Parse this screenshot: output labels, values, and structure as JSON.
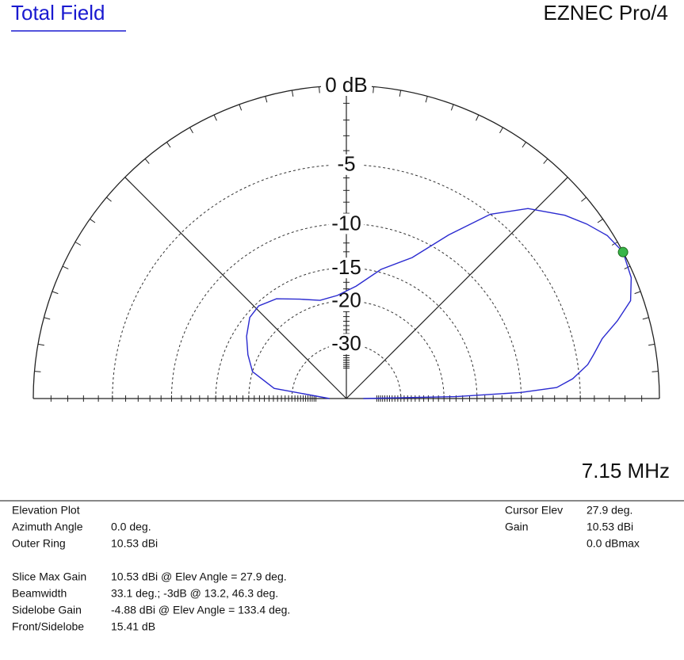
{
  "header": {
    "title": "Total Field",
    "program": "EZNEC Pro/4",
    "frequency": "7.15 MHz"
  },
  "chart_data": {
    "type": "polar",
    "scale": "arrl-log",
    "rticks": [
      {
        "value": 0,
        "label": "0 dB"
      },
      -5,
      -10,
      -15,
      -20,
      -30
    ],
    "series": [
      {
        "color": "#2a2ad0",
        "x": [
          0,
          1,
          2,
          3,
          5,
          8,
          10,
          13.2,
          16,
          19,
          23,
          27.9,
          32,
          36,
          40,
          46.3,
          52,
          58,
          65,
          75,
          85,
          95,
          105,
          115,
          125,
          133.4,
          140,
          148,
          156,
          164,
          172,
          180
        ],
        "values": [
          -50,
          -18,
          -10,
          -6.8,
          -5.5,
          -4.3,
          -3.8,
          -3.0,
          -1.8,
          -0.7,
          -0.2,
          0,
          -0.3,
          -0.9,
          -1.6,
          -3.0,
          -5.0,
          -8.3,
          -12,
          -14.6,
          -17.5,
          -19,
          -19.3,
          -18,
          -16.2,
          -15.41,
          -15.6,
          -16.8,
          -18.3,
          -20,
          -25,
          -50
        ]
      }
    ],
    "cursor_color": "#39b54a"
  },
  "info": {
    "left": [
      [
        "Elevation Plot",
        ""
      ],
      [
        "Azimuth Angle",
        "0.0 deg."
      ],
      [
        "Outer Ring",
        "10.53 dBi"
      ],
      [
        "Slice Max Gain",
        "10.53 dBi @ Elev Angle = 27.9 deg."
      ],
      [
        "Beamwidth",
        "33.1 deg.; -3dB @ 13.2, 46.3 deg."
      ],
      [
        "Sidelobe Gain",
        "-4.88 dBi @ Elev Angle = 133.4 deg."
      ],
      [
        "Front/Sidelobe",
        "15.41 dB"
      ]
    ],
    "right": [
      [
        "Cursor Elev",
        "27.9 deg."
      ],
      [
        "Gain",
        "10.53 dBi"
      ],
      [
        "",
        "0.0 dBmax"
      ]
    ]
  }
}
